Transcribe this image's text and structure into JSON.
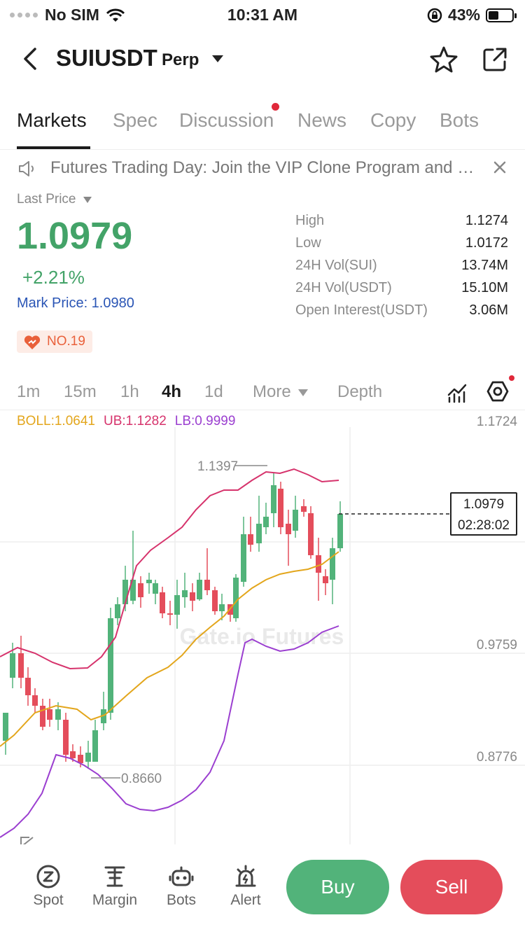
{
  "status_bar": {
    "carrier": "No SIM",
    "time": "10:31 AM",
    "battery": "43%",
    "battery_level": 0.43
  },
  "header": {
    "symbol": "SUIUSDT",
    "contract": "Perp"
  },
  "tabs": [
    {
      "label": "Markets",
      "active": true
    },
    {
      "label": "Spec"
    },
    {
      "label": "Discussion",
      "badge": true
    },
    {
      "label": "News"
    },
    {
      "label": "Copy"
    },
    {
      "label": "Bots"
    }
  ],
  "notice": {
    "text": "Futures Trading Day: Join the VIP Clone Program and Share"
  },
  "price": {
    "label": "Last Price",
    "last": "1.0979",
    "change": "+2.21%",
    "mark": "Mark Price: 1.0980",
    "rank": "NO.19",
    "color_up": "#43a368"
  },
  "stats": [
    {
      "key": "High",
      "value": "1.1274"
    },
    {
      "key": "Low",
      "value": "1.0172"
    },
    {
      "key": "24H Vol(SUI)",
      "value": "13.74M"
    },
    {
      "key": "24H Vol(USDT)",
      "value": "15.10M"
    },
    {
      "key": "Open Interest(USDT)",
      "value": "3.06M"
    }
  ],
  "intervals": {
    "items": [
      "1m",
      "15m",
      "1h",
      "4h",
      "1d"
    ],
    "active": "4h",
    "more": "More",
    "depth": "Depth"
  },
  "chart": {
    "boll": "BOLL:1.0641",
    "ub": "UB:1.1282",
    "lb": "LB:0.9999",
    "axis_labels": [
      "1.1724",
      "0.9759",
      "0.8776"
    ],
    "high_marker": "1.1397",
    "low_marker": "0.8660",
    "watermark": "Gate.io Futures",
    "current_price": "1.0979",
    "countdown": "02:28:02"
  },
  "bottom_nav": [
    {
      "label": "Spot",
      "icon": "spot-icon"
    },
    {
      "label": "Margin",
      "icon": "margin-icon"
    },
    {
      "label": "Bots",
      "icon": "bots-icon"
    },
    {
      "label": "Alert",
      "icon": "alert-icon"
    }
  ],
  "actions": {
    "buy": "Buy",
    "sell": "Sell",
    "buy_color": "#52b37a",
    "sell_color": "#e44d5b"
  }
}
